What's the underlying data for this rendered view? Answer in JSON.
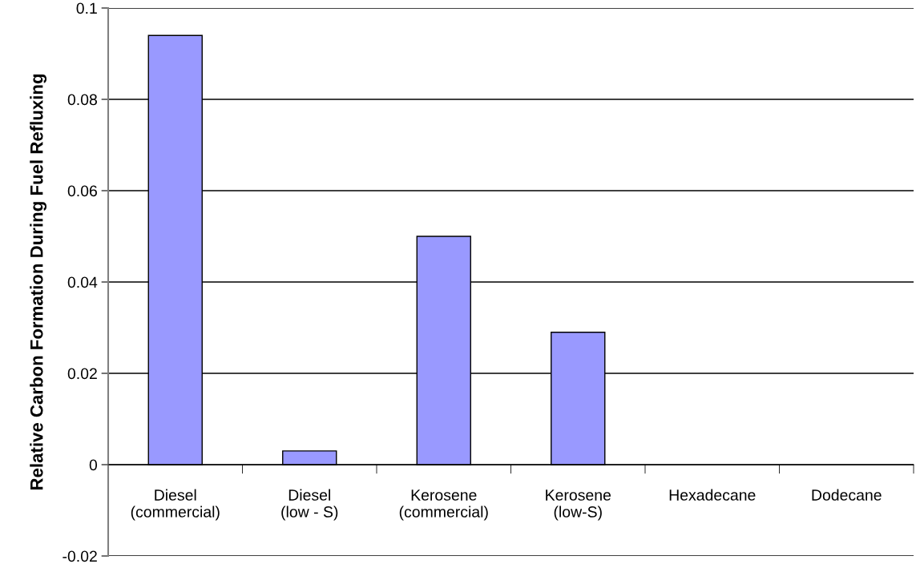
{
  "chart_data": {
    "type": "bar",
    "ylabel": "Relative Carbon Formation During Fuel Refluxing",
    "categories": [
      "Diesel\n(commercial)",
      "Diesel\n(low - S)",
      "Kerosene\n(commercial)",
      "Kerosene\n(low-S)",
      "Hexadecane",
      "Dodecane"
    ],
    "values": [
      0.094,
      0.003,
      0.05,
      0.029,
      0,
      0
    ],
    "color": "#9999ff",
    "ylim": [
      -0.02,
      0.1
    ],
    "yticks": [
      {
        "value": -0.02,
        "label": "-0.02"
      },
      {
        "value": 0,
        "label": "0"
      },
      {
        "value": 0.02,
        "label": "0.02"
      },
      {
        "value": 0.04,
        "label": "0.04"
      },
      {
        "value": 0.06,
        "label": "0.06"
      },
      {
        "value": 0.08,
        "label": "0.08"
      },
      {
        "value": 0.1,
        "label": "0.1"
      }
    ],
    "grid": "y",
    "legend": false
  }
}
